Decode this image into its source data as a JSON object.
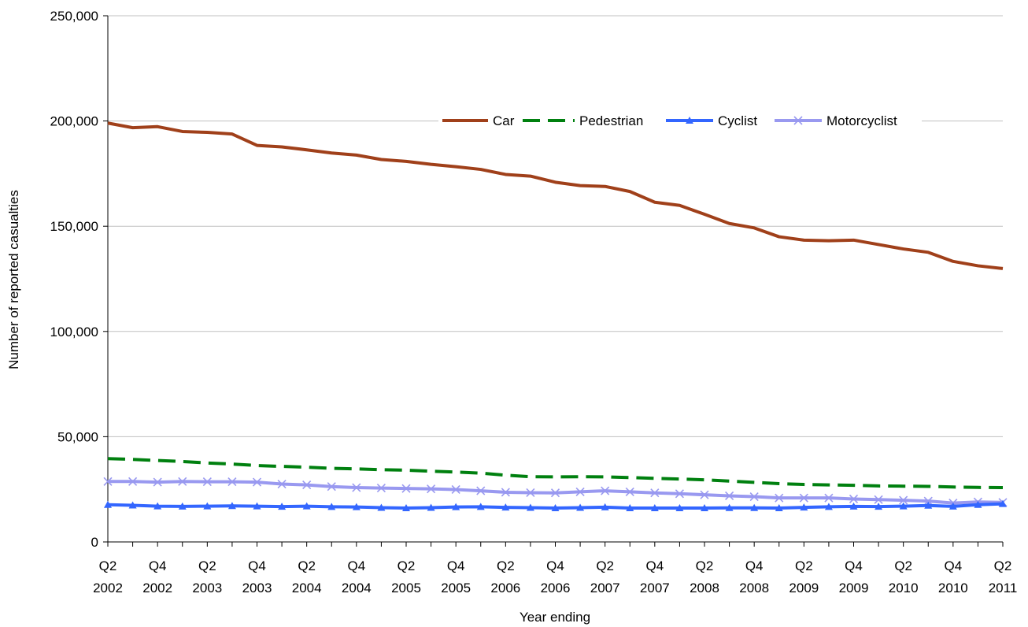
{
  "chart_data": {
    "type": "line",
    "xlabel": "Year ending",
    "ylabel": "Number of reported casualties",
    "ylim": [
      0,
      250000
    ],
    "yticks": [
      0,
      50000,
      100000,
      150000,
      200000,
      250000
    ],
    "ytick_labels": [
      "0",
      "50,000",
      "100,000",
      "150,000",
      "200,000",
      "250,000"
    ],
    "grid": "horizontal",
    "legend_position": "top-right",
    "categories": [
      "Q2 2002",
      "Q3 2002",
      "Q4 2002",
      "Q1 2003",
      "Q2 2003",
      "Q3 2003",
      "Q4 2003",
      "Q1 2004",
      "Q2 2004",
      "Q3 2004",
      "Q4 2004",
      "Q1 2005",
      "Q2 2005",
      "Q3 2005",
      "Q4 2005",
      "Q1 2006",
      "Q2 2006",
      "Q3 2006",
      "Q4 2006",
      "Q1 2007",
      "Q2 2007",
      "Q3 2007",
      "Q4 2007",
      "Q1 2008",
      "Q2 2008",
      "Q3 2008",
      "Q4 2008",
      "Q1 2009",
      "Q2 2009",
      "Q3 2009",
      "Q4 2009",
      "Q1 2010",
      "Q2 2010",
      "Q3 2010",
      "Q4 2010",
      "Q1 2011",
      "Q2 2011"
    ],
    "tick_labels": [
      {
        "index": 0,
        "line1": "Q2",
        "line2": "2002"
      },
      {
        "index": 2,
        "line1": "Q4",
        "line2": "2002"
      },
      {
        "index": 4,
        "line1": "Q2",
        "line2": "2003"
      },
      {
        "index": 6,
        "line1": "Q4",
        "line2": "2003"
      },
      {
        "index": 8,
        "line1": "Q2",
        "line2": "2004"
      },
      {
        "index": 10,
        "line1": "Q4",
        "line2": "2004"
      },
      {
        "index": 12,
        "line1": "Q2",
        "line2": "2005"
      },
      {
        "index": 14,
        "line1": "Q4",
        "line2": "2005"
      },
      {
        "index": 16,
        "line1": "Q2",
        "line2": "2006"
      },
      {
        "index": 18,
        "line1": "Q4",
        "line2": "2006"
      },
      {
        "index": 20,
        "line1": "Q2",
        "line2": "2007"
      },
      {
        "index": 22,
        "line1": "Q4",
        "line2": "2007"
      },
      {
        "index": 24,
        "line1": "Q2",
        "line2": "2008"
      },
      {
        "index": 26,
        "line1": "Q4",
        "line2": "2008"
      },
      {
        "index": 28,
        "line1": "Q2",
        "line2": "2009"
      },
      {
        "index": 30,
        "line1": "Q4",
        "line2": "2009"
      },
      {
        "index": 32,
        "line1": "Q2",
        "line2": "2010"
      },
      {
        "index": 34,
        "line1": "Q4",
        "line2": "2010"
      },
      {
        "index": 36,
        "line1": "Q2",
        "line2": "2011"
      }
    ],
    "series": [
      {
        "name": "Car",
        "color": "#A0401A",
        "style": "solid",
        "marker": "none",
        "values": [
          199000,
          196800,
          197300,
          195000,
          194600,
          193800,
          188400,
          187700,
          186300,
          184800,
          183800,
          181700,
          180800,
          179400,
          178300,
          177000,
          174600,
          173800,
          170900,
          169300,
          168900,
          166500,
          161400,
          159900,
          155700,
          151300,
          149200,
          145000,
          143400,
          143100,
          143400,
          141300,
          139200,
          137600,
          133300,
          131200,
          129900
        ]
      },
      {
        "name": "Pedestrian",
        "color": "#00800F",
        "style": "dashed",
        "marker": "none",
        "values": [
          39600,
          39200,
          38700,
          38200,
          37500,
          37000,
          36300,
          35900,
          35500,
          35000,
          34700,
          34300,
          34100,
          33600,
          33200,
          32700,
          31700,
          31000,
          30900,
          31000,
          30900,
          30600,
          30200,
          29900,
          29500,
          28900,
          28300,
          27700,
          27300,
          27100,
          26900,
          26600,
          26500,
          26400,
          26100,
          25900,
          25800
        ]
      },
      {
        "name": "Cyclist",
        "color": "#3366FF",
        "style": "solid",
        "marker": "triangle",
        "values": [
          17700,
          17400,
          17000,
          16900,
          17000,
          17100,
          17000,
          16800,
          17000,
          16700,
          16600,
          16300,
          16100,
          16300,
          16600,
          16700,
          16400,
          16300,
          16100,
          16300,
          16500,
          16100,
          16100,
          16100,
          16100,
          16200,
          16200,
          16100,
          16400,
          16700,
          16900,
          16800,
          17000,
          17300,
          16900,
          17700,
          18100
        ]
      },
      {
        "name": "Motorcyclist",
        "color": "#9999F0",
        "style": "solid",
        "marker": "x",
        "values": [
          28700,
          28700,
          28400,
          28700,
          28600,
          28600,
          28400,
          27500,
          27100,
          26300,
          25800,
          25600,
          25400,
          25200,
          24900,
          24300,
          23600,
          23400,
          23300,
          23800,
          24300,
          23800,
          23300,
          22900,
          22400,
          21900,
          21500,
          20900,
          20900,
          20900,
          20400,
          20100,
          19800,
          19400,
          18500,
          19000,
          18800
        ]
      }
    ]
  }
}
